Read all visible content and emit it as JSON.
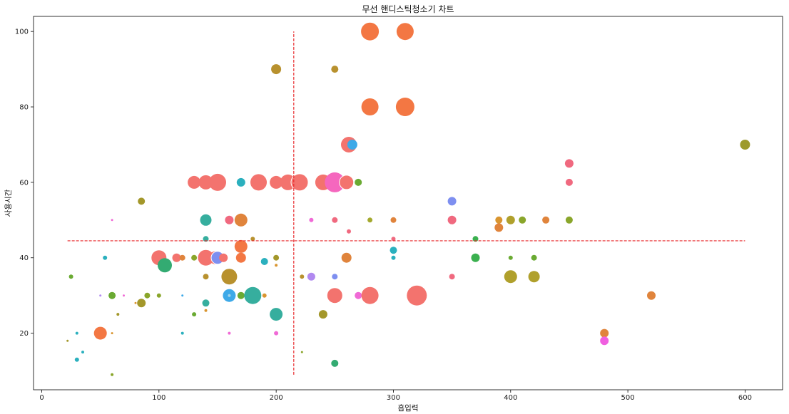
{
  "chart_data": {
    "type": "scatter",
    "title": "무선 핸디스틱청소기 차트",
    "xlabel": "흡입력",
    "ylabel": "사용시간",
    "xlim": [
      -7,
      632
    ],
    "ylim": [
      5,
      104
    ],
    "xticks": [
      0,
      100,
      200,
      300,
      400,
      500,
      600
    ],
    "yticks": [
      20,
      40,
      60,
      80,
      100
    ],
    "reference_lines": {
      "vertical_x": 215,
      "vertical_y_range": [
        9,
        100
      ],
      "horizontal_y": 44.5,
      "horizontal_x_range": [
        22,
        600
      ],
      "color": "#e8282b"
    },
    "points": [
      {
        "x": 280,
        "y": 100,
        "s": 13,
        "c": "#f37743",
        "outline": true
      },
      {
        "x": 310,
        "y": 100,
        "s": 12,
        "c": "#f37743"
      },
      {
        "x": 200,
        "y": 90,
        "s": 7,
        "c": "#b8912e"
      },
      {
        "x": 250,
        "y": 90,
        "s": 5,
        "c": "#b8912e"
      },
      {
        "x": 280,
        "y": 80,
        "s": 12,
        "c": "#f37743"
      },
      {
        "x": 310,
        "y": 80,
        "s": 13,
        "c": "#f37743"
      },
      {
        "x": 262,
        "y": 70,
        "s": 11,
        "c": "#f3736e"
      },
      {
        "x": 265,
        "y": 70,
        "s": 7,
        "c": "#3da9e8"
      },
      {
        "x": 600,
        "y": 70,
        "s": 7,
        "c": "#9d9a2d"
      },
      {
        "x": 130,
        "y": 60,
        "s": 9,
        "c": "#f3736e"
      },
      {
        "x": 140,
        "y": 60,
        "s": 10,
        "c": "#f3736e"
      },
      {
        "x": 150,
        "y": 60,
        "s": 12,
        "c": "#f3736e"
      },
      {
        "x": 170,
        "y": 60,
        "s": 6,
        "c": "#2bb0be"
      },
      {
        "x": 185,
        "y": 60,
        "s": 12,
        "c": "#f3736e",
        "outline": true
      },
      {
        "x": 200,
        "y": 60,
        "s": 9,
        "c": "#f3736e"
      },
      {
        "x": 210,
        "y": 60,
        "s": 11,
        "c": "#f3736e"
      },
      {
        "x": 220,
        "y": 60,
        "s": 12,
        "c": "#f3736e",
        "outline": true
      },
      {
        "x": 240,
        "y": 60,
        "s": 11,
        "c": "#f3736e"
      },
      {
        "x": 250,
        "y": 60,
        "s": 14,
        "c": "#f567be"
      },
      {
        "x": 260,
        "y": 60,
        "s": 10,
        "c": "#f3736e",
        "outline": true
      },
      {
        "x": 270,
        "y": 60,
        "s": 5,
        "c": "#6aaa32"
      },
      {
        "x": 450,
        "y": 65,
        "s": 6,
        "c": "#f0697f"
      },
      {
        "x": 450,
        "y": 60,
        "s": 5,
        "c": "#f0697f"
      },
      {
        "x": 85,
        "y": 55,
        "s": 5,
        "c": "#a3972a"
      },
      {
        "x": 350,
        "y": 55,
        "s": 6,
        "c": "#7e8ff0"
      },
      {
        "x": 60,
        "y": 50,
        "s": 1.5,
        "c": "#f06ad6"
      },
      {
        "x": 140,
        "y": 50,
        "s": 8,
        "c": "#36ae9e"
      },
      {
        "x": 160,
        "y": 50,
        "s": 6,
        "c": "#f0697f"
      },
      {
        "x": 170,
        "y": 50,
        "s": 9,
        "c": "#e0843c"
      },
      {
        "x": 230,
        "y": 50,
        "s": 3,
        "c": "#f06ad6"
      },
      {
        "x": 250,
        "y": 50,
        "s": 4,
        "c": "#f0697f"
      },
      {
        "x": 280,
        "y": 50,
        "s": 4,
        "c": "#a4a92e",
        "outline": true
      },
      {
        "x": 300,
        "y": 50,
        "s": 4,
        "c": "#e0843c"
      },
      {
        "x": 350,
        "y": 50,
        "s": 6,
        "c": "#f0697f"
      },
      {
        "x": 390,
        "y": 50,
        "s": 5,
        "c": "#d99530"
      },
      {
        "x": 400,
        "y": 50,
        "s": 6,
        "c": "#b0a02c"
      },
      {
        "x": 410,
        "y": 50,
        "s": 5,
        "c": "#8aa62b"
      },
      {
        "x": 430,
        "y": 50,
        "s": 5,
        "c": "#e0843c"
      },
      {
        "x": 450,
        "y": 50,
        "s": 5,
        "c": "#8aa62b"
      },
      {
        "x": 390,
        "y": 48,
        "s": 6,
        "c": "#e0843c"
      },
      {
        "x": 262,
        "y": 47,
        "s": 3,
        "c": "#f0697f"
      },
      {
        "x": 140,
        "y": 45,
        "s": 4,
        "c": "#36ae9e"
      },
      {
        "x": 180,
        "y": 45,
        "s": 3,
        "c": "#b8912e"
      },
      {
        "x": 300,
        "y": 45,
        "s": 3,
        "c": "#f0697f"
      },
      {
        "x": 370,
        "y": 45,
        "s": 4,
        "c": "#3bb04f"
      },
      {
        "x": 170,
        "y": 43,
        "s": 9,
        "c": "#f37743"
      },
      {
        "x": 300,
        "y": 42,
        "s": 5,
        "c": "#2bb0be"
      },
      {
        "x": 260,
        "y": 40,
        "s": 7,
        "c": "#e0843c"
      },
      {
        "x": 300,
        "y": 40,
        "s": 3,
        "c": "#2bb0be"
      },
      {
        "x": 54,
        "y": 40,
        "s": 3,
        "c": "#2bb0be"
      },
      {
        "x": 100,
        "y": 40,
        "s": 11,
        "c": "#f3736e",
        "outline": true
      },
      {
        "x": 115,
        "y": 40,
        "s": 6,
        "c": "#f3736e"
      },
      {
        "x": 120,
        "y": 40,
        "s": 4,
        "c": "#e0843c"
      },
      {
        "x": 130,
        "y": 40,
        "s": 4,
        "c": "#8aa62b"
      },
      {
        "x": 140,
        "y": 40,
        "s": 11,
        "c": "#f3736e"
      },
      {
        "x": 148,
        "y": 40,
        "s": 9,
        "c": "#f3736e"
      },
      {
        "x": 150,
        "y": 40,
        "s": 9,
        "c": "#7e8ff0",
        "outline": true
      },
      {
        "x": 155,
        "y": 40,
        "s": 6,
        "c": "#f3736e"
      },
      {
        "x": 170,
        "y": 40,
        "s": 7,
        "c": "#f37743"
      },
      {
        "x": 200,
        "y": 40,
        "s": 4,
        "c": "#a3972a"
      },
      {
        "x": 370,
        "y": 40,
        "s": 6,
        "c": "#3bb04f"
      },
      {
        "x": 400,
        "y": 40,
        "s": 3,
        "c": "#6aaa32"
      },
      {
        "x": 420,
        "y": 40,
        "s": 4,
        "c": "#6aaa32"
      },
      {
        "x": 105,
        "y": 38,
        "s": 10,
        "c": "#33ab72"
      },
      {
        "x": 190,
        "y": 39,
        "s": 5,
        "c": "#2bb0be"
      },
      {
        "x": 200,
        "y": 38,
        "s": 2,
        "c": "#d99530"
      },
      {
        "x": 25,
        "y": 35,
        "s": 3,
        "c": "#6aaa32"
      },
      {
        "x": 140,
        "y": 35,
        "s": 4,
        "c": "#b8912e"
      },
      {
        "x": 160,
        "y": 35,
        "s": 11,
        "c": "#b8912e"
      },
      {
        "x": 222,
        "y": 35,
        "s": 3,
        "c": "#b8912e"
      },
      {
        "x": 230,
        "y": 35,
        "s": 6,
        "c": "#b189f0",
        "outline": true
      },
      {
        "x": 250,
        "y": 35,
        "s": 4,
        "c": "#7e8ff0"
      },
      {
        "x": 350,
        "y": 35,
        "s": 4,
        "c": "#f0697f"
      },
      {
        "x": 400,
        "y": 35,
        "s": 9,
        "c": "#b0a02c"
      },
      {
        "x": 420,
        "y": 35,
        "s": 8,
        "c": "#b0a02c"
      },
      {
        "x": 50,
        "y": 30,
        "s": 1.5,
        "c": "#b189f0"
      },
      {
        "x": 60,
        "y": 30,
        "s": 5,
        "c": "#6aaa32"
      },
      {
        "x": 70,
        "y": 30,
        "s": 1.5,
        "c": "#f06ad6"
      },
      {
        "x": 90,
        "y": 30,
        "s": 4,
        "c": "#8aa62b"
      },
      {
        "x": 100,
        "y": 30,
        "s": 3,
        "c": "#8aa62b"
      },
      {
        "x": 120,
        "y": 30,
        "s": 1.5,
        "c": "#3da9e8"
      },
      {
        "x": 160,
        "y": 30,
        "s": 9,
        "c": "#3da9e8"
      },
      {
        "x": 160,
        "y": 30,
        "s": 2,
        "c": "#9fd3ea"
      },
      {
        "x": 170,
        "y": 30,
        "s": 5,
        "c": "#6aaa32"
      },
      {
        "x": 180,
        "y": 30,
        "s": 12,
        "c": "#36ae9e"
      },
      {
        "x": 190,
        "y": 30,
        "s": 3,
        "c": "#d99530"
      },
      {
        "x": 250,
        "y": 30,
        "s": 11,
        "c": "#f3736e",
        "outline": true
      },
      {
        "x": 270,
        "y": 30,
        "s": 5,
        "c": "#f06ad6"
      },
      {
        "x": 280,
        "y": 30,
        "s": 12,
        "c": "#f3736e"
      },
      {
        "x": 320,
        "y": 30,
        "s": 14,
        "c": "#f3736e"
      },
      {
        "x": 520,
        "y": 30,
        "s": 6,
        "c": "#e0843c"
      },
      {
        "x": 85,
        "y": 28,
        "s": 6,
        "c": "#a3972a"
      },
      {
        "x": 80,
        "y": 28,
        "s": 1.5,
        "c": "#d99530"
      },
      {
        "x": 140,
        "y": 28,
        "s": 5,
        "c": "#36ae9e"
      },
      {
        "x": 140,
        "y": 26,
        "s": 2,
        "c": "#d99530"
      },
      {
        "x": 65,
        "y": 25,
        "s": 2,
        "c": "#a3972a"
      },
      {
        "x": 130,
        "y": 25,
        "s": 3,
        "c": "#6aaa32"
      },
      {
        "x": 200,
        "y": 25,
        "s": 9,
        "c": "#36ae9e"
      },
      {
        "x": 240,
        "y": 25,
        "s": 6,
        "c": "#a3972a"
      },
      {
        "x": 30,
        "y": 20,
        "s": 2,
        "c": "#2bb0be"
      },
      {
        "x": 50,
        "y": 20,
        "s": 9,
        "c": "#f37743"
      },
      {
        "x": 60,
        "y": 20,
        "s": 1.5,
        "c": "#d99530"
      },
      {
        "x": 120,
        "y": 20,
        "s": 2,
        "c": "#2bb0be"
      },
      {
        "x": 160,
        "y": 20,
        "s": 2,
        "c": "#f06ad6"
      },
      {
        "x": 200,
        "y": 20,
        "s": 3,
        "c": "#f06ad6"
      },
      {
        "x": 480,
        "y": 20,
        "s": 6,
        "c": "#e0843c"
      },
      {
        "x": 480,
        "y": 18,
        "s": 6,
        "c": "#f05fe0"
      },
      {
        "x": 22,
        "y": 18,
        "s": 1.5,
        "c": "#a3972a"
      },
      {
        "x": 35,
        "y": 15,
        "s": 2,
        "c": "#2bb0be"
      },
      {
        "x": 222,
        "y": 15,
        "s": 1.5,
        "c": "#8aa62b"
      },
      {
        "x": 30,
        "y": 13,
        "s": 3,
        "c": "#2bb0be"
      },
      {
        "x": 250,
        "y": 12,
        "s": 5,
        "c": "#33ab72"
      },
      {
        "x": 60,
        "y": 9,
        "s": 2,
        "c": "#8aa62b"
      }
    ]
  }
}
